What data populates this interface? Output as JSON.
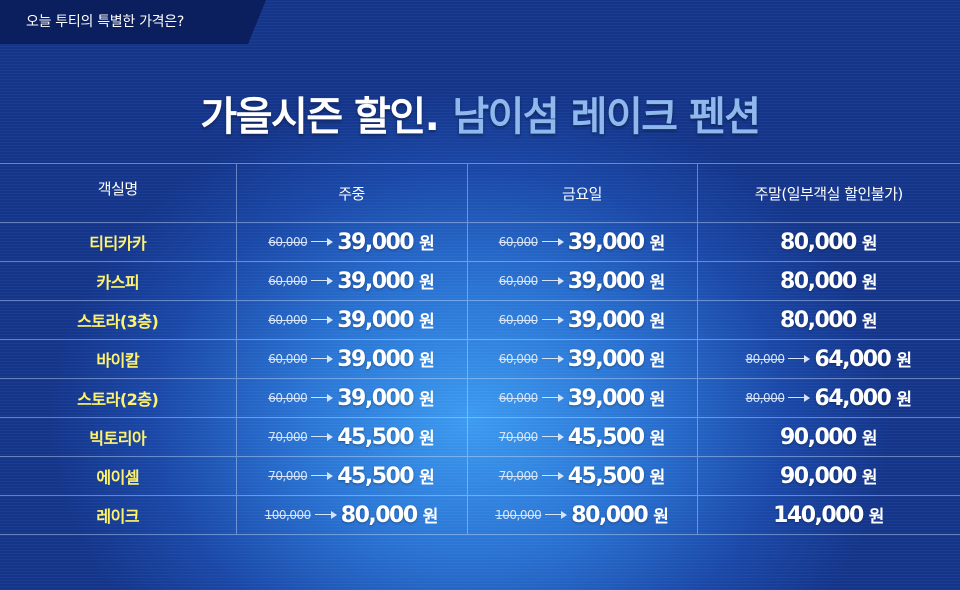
{
  "banner": {
    "tab_text": "오늘 투티의 특별한 가격은?"
  },
  "headline": {
    "part1": "가을시즌 할인.",
    "part2": "남이섬 레이크 펜션"
  },
  "table": {
    "headers": [
      "객실명",
      "주중",
      "금요일",
      "주말(일부객실 할인불가)"
    ],
    "currency": "원",
    "rows": [
      {
        "room": "티티카카",
        "weekday": {
          "old": "60,000",
          "new": "39,000"
        },
        "friday": {
          "old": "60,000",
          "new": "39,000"
        },
        "weekend": {
          "old": "",
          "new": "80,000"
        }
      },
      {
        "room": "카스피",
        "weekday": {
          "old": "60,000",
          "new": "39,000"
        },
        "friday": {
          "old": "60,000",
          "new": "39,000"
        },
        "weekend": {
          "old": "",
          "new": "80,000"
        }
      },
      {
        "room": "스토라(3층)",
        "weekday": {
          "old": "60,000",
          "new": "39,000"
        },
        "friday": {
          "old": "60,000",
          "new": "39,000"
        },
        "weekend": {
          "old": "",
          "new": "80,000"
        }
      },
      {
        "room": "바이칼",
        "weekday": {
          "old": "60,000",
          "new": "39,000"
        },
        "friday": {
          "old": "60,000",
          "new": "39,000"
        },
        "weekend": {
          "old": "80,000",
          "new": "64,000"
        }
      },
      {
        "room": "스토라(2층)",
        "weekday": {
          "old": "60,000",
          "new": "39,000"
        },
        "friday": {
          "old": "60,000",
          "new": "39,000"
        },
        "weekend": {
          "old": "80,000",
          "new": "64,000"
        }
      },
      {
        "room": "빅토리아",
        "weekday": {
          "old": "70,000",
          "new": "45,500"
        },
        "friday": {
          "old": "70,000",
          "new": "45,500"
        },
        "weekend": {
          "old": "",
          "new": "90,000"
        }
      },
      {
        "room": "에이셀",
        "weekday": {
          "old": "70,000",
          "new": "45,500"
        },
        "friday": {
          "old": "70,000",
          "new": "45,500"
        },
        "weekend": {
          "old": "",
          "new": "90,000"
        }
      },
      {
        "room": "레이크",
        "weekday": {
          "old": "100,000",
          "new": "80,000"
        },
        "friday": {
          "old": "100,000",
          "new": "80,000"
        },
        "weekend": {
          "old": "",
          "new": "140,000"
        }
      }
    ]
  }
}
